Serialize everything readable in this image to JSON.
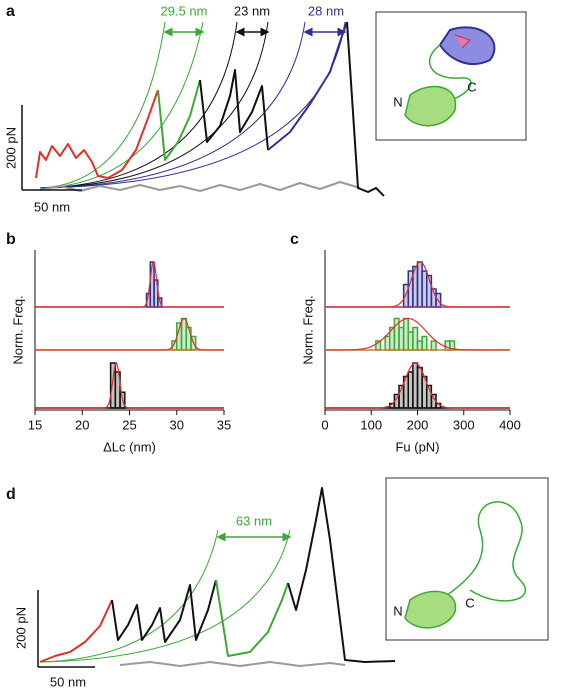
{
  "panels": {
    "a": {
      "label": "a",
      "y_scale": "200 pN",
      "x_scale": "50 nm",
      "annotations": [
        "29.5 nm",
        "23 nm",
        "28 nm"
      ],
      "structure_labels": [
        "N",
        "C"
      ]
    },
    "d": {
      "label": "d",
      "y_scale": "200 pN",
      "x_scale": "50 nm",
      "annotations": [
        "63 nm"
      ],
      "structure_labels": [
        "N",
        "C"
      ]
    }
  },
  "chart_data": [
    {
      "type": "histogram",
      "panel_label": "b",
      "x_label": "ΔLc (nm)",
      "y_label": "Norm. Freq.",
      "xlim": [
        15,
        35
      ],
      "xticks": [
        15,
        20,
        25,
        30,
        35
      ],
      "series": [
        {
          "color": "#2e3192",
          "line_color": "#8a3c8c",
          "bins": [
            26.8,
            27.2,
            27.6,
            28.0,
            28.4
          ],
          "values": [
            0.3,
            1,
            0.6,
            0.2
          ]
        },
        {
          "color": "#3aaa35",
          "line_color": "#d07a2a",
          "bins": [
            29.5,
            30,
            30.5,
            31,
            31.5,
            32
          ],
          "values": [
            0.2,
            0.6,
            0.7,
            0.5,
            0.3
          ]
        },
        {
          "color": "#111111",
          "line_color": "#111111",
          "bins": [
            23,
            23.5,
            24,
            24.5
          ],
          "values": [
            1,
            0.8,
            0.35
          ]
        }
      ]
    },
    {
      "type": "histogram",
      "panel_label": "c",
      "x_label": "Fu (pN)",
      "y_label": "Norm. Freq.",
      "xlim": [
        0,
        400
      ],
      "xticks": [
        0,
        100,
        200,
        300,
        400
      ],
      "series": [
        {
          "color": "#2e3192",
          "line_color": "#8a3c8c",
          "bins": [
            170,
            180,
            190,
            200,
            210,
            220,
            230,
            240,
            250
          ],
          "values": [
            0.5,
            0.8,
            0.9,
            1,
            0.8,
            0.7,
            0.4,
            0.3
          ]
        },
        {
          "color": "#3aaa35",
          "line_color": "#d07a2a",
          "bins": [
            110,
            120,
            130,
            140,
            150,
            160,
            170,
            180,
            190,
            200,
            210,
            220,
            230,
            240,
            250,
            260,
            270,
            280
          ],
          "values": [
            0.2,
            0,
            0.3,
            0.5,
            0.7,
            0.5,
            0.7,
            0.4,
            0.5,
            0.2,
            0.3,
            0,
            0.2,
            0,
            0,
            0.2,
            0.2
          ]
        },
        {
          "color": "#111111",
          "line_color": "#111111",
          "bins": [
            140,
            150,
            160,
            170,
            180,
            190,
            200,
            210,
            220,
            230,
            240,
            250
          ],
          "values": [
            0.1,
            0.3,
            0.5,
            0.7,
            0.8,
            1,
            0.9,
            0.7,
            0.5,
            0.3,
            0.1
          ]
        }
      ]
    }
  ]
}
